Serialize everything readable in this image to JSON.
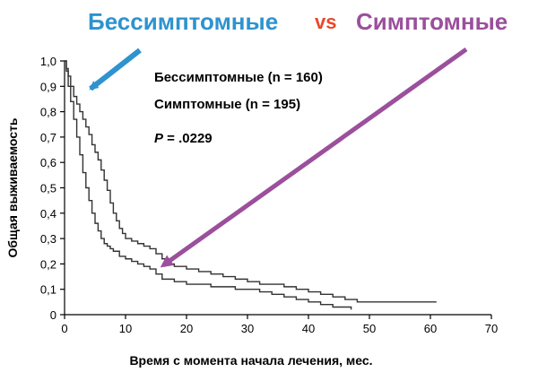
{
  "title": {
    "left": "Бессимптомные",
    "vs": "vs",
    "right": "Симптомные",
    "colors": {
      "left": "#2e93cf",
      "vs": "#e8482a",
      "right": "#9b4f9c"
    }
  },
  "annotations": {
    "line1": "Бессимптомные (n = 160)",
    "line2": "Симптомные (n = 195)",
    "p_label": "P",
    "p_value": " = .0229"
  },
  "arrows": [
    {
      "name": "asymptomatic-arrow",
      "color": "#2e93cf",
      "from": [
        -2,
        -2.9
      ],
      "to": [
        -2,
        -2.9
      ],
      "target_series": "Бессимптомные"
    },
    {
      "name": "symptomatic-arrow",
      "color": "#9b4f9c",
      "target_series": "Симптомные"
    }
  ],
  "chart_data": {
    "type": "line",
    "step": true,
    "xlabel": "Время с момента начала лечения, мес.",
    "ylabel": "Общая выживаемость",
    "xlim": [
      0,
      70
    ],
    "ylim": [
      0,
      1.0
    ],
    "xticks": [
      0,
      10,
      20,
      30,
      40,
      50,
      60,
      70
    ],
    "xtick_labels": [
      "0",
      "10",
      "20",
      "30",
      "40",
      "50",
      "60",
      "70"
    ],
    "yticks": [
      0,
      0.1,
      0.2,
      0.3,
      0.4,
      0.5,
      0.6,
      0.7,
      0.8,
      0.9,
      1.0
    ],
    "ytick_labels": [
      "0",
      "0,1",
      "0,2",
      "0,3",
      "0,4",
      "0,5",
      "0,6",
      "0,7",
      "0,8",
      "0,9",
      "1,0"
    ],
    "grid": false,
    "series": [
      {
        "name": "Бессимптомные",
        "color": "#333333",
        "x": [
          0,
          0.3,
          0.6,
          1,
          1.5,
          2,
          2.5,
          3,
          3.5,
          4,
          4.5,
          5,
          5.5,
          6,
          6.5,
          7,
          7.5,
          8,
          8.5,
          9,
          9.5,
          10,
          11,
          12,
          13,
          14,
          15,
          16,
          17,
          18,
          20,
          22,
          24,
          26,
          28,
          30,
          32,
          34,
          36,
          38,
          40,
          42,
          44,
          46,
          48,
          50,
          52,
          55,
          58,
          61
        ],
        "y": [
          1.0,
          0.97,
          0.94,
          0.9,
          0.86,
          0.83,
          0.8,
          0.77,
          0.74,
          0.71,
          0.67,
          0.64,
          0.61,
          0.57,
          0.53,
          0.49,
          0.44,
          0.4,
          0.37,
          0.34,
          0.32,
          0.3,
          0.29,
          0.28,
          0.27,
          0.26,
          0.24,
          0.22,
          0.2,
          0.19,
          0.18,
          0.17,
          0.16,
          0.15,
          0.14,
          0.13,
          0.12,
          0.12,
          0.11,
          0.1,
          0.09,
          0.08,
          0.07,
          0.06,
          0.05,
          0.05,
          0.05,
          0.05,
          0.05,
          0.05
        ]
      },
      {
        "name": "Симптомные",
        "color": "#333333",
        "x": [
          0,
          0.3,
          0.6,
          1,
          1.5,
          2,
          2.5,
          3,
          3.5,
          4,
          4.5,
          5,
          5.5,
          6,
          6.5,
          7,
          7.5,
          8,
          9,
          10,
          11,
          12,
          13,
          14,
          15,
          16,
          18,
          20,
          22,
          24,
          26,
          28,
          30,
          32,
          34,
          36,
          38,
          40,
          42,
          44,
          47
        ],
        "y": [
          1.0,
          0.96,
          0.9,
          0.84,
          0.77,
          0.7,
          0.63,
          0.56,
          0.5,
          0.45,
          0.4,
          0.36,
          0.33,
          0.3,
          0.28,
          0.27,
          0.26,
          0.25,
          0.23,
          0.22,
          0.21,
          0.2,
          0.19,
          0.18,
          0.16,
          0.14,
          0.13,
          0.12,
          0.12,
          0.11,
          0.11,
          0.1,
          0.1,
          0.09,
          0.08,
          0.07,
          0.06,
          0.05,
          0.04,
          0.03,
          0.02
        ]
      }
    ]
  }
}
